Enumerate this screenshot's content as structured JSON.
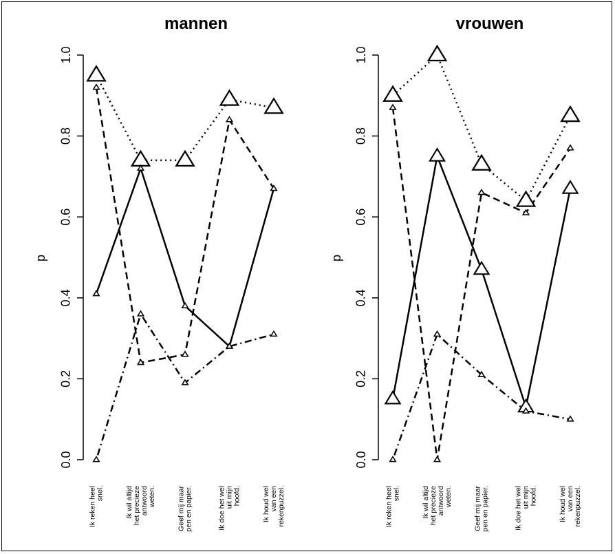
{
  "chart_data": [
    {
      "type": "line",
      "title": "mannen",
      "ylabel": "p",
      "xlabel": "",
      "ylim": [
        0,
        1
      ],
      "yticks": [
        "0.0",
        "0.2",
        "0.4",
        "0.6",
        "0.8",
        "1.0"
      ],
      "categories": [
        [
          "Ik reken heel",
          "snel."
        ],
        [
          "Ik wil altijd",
          "het precieze",
          "antwoord",
          "weten."
        ],
        [
          "Geef mij maar",
          "pen en papier."
        ],
        [
          "Ik doe het wel",
          "uit mijn",
          "hoofd."
        ],
        [
          "Ik houd wel",
          "van een",
          "rekenpuzzel."
        ]
      ],
      "series": [
        {
          "style": "dotted",
          "values": [
            0.95,
            0.74,
            0.74,
            0.89,
            0.87
          ],
          "sizes": [
            3,
            3,
            3,
            3,
            3
          ]
        },
        {
          "style": "dashed",
          "values": [
            0.92,
            0.24,
            0.26,
            0.84,
            0.67
          ],
          "sizes": [
            1,
            1,
            1,
            1,
            1
          ]
        },
        {
          "style": "solid",
          "values": [
            0.41,
            0.72,
            0.38,
            0.28,
            0.67
          ],
          "sizes": [
            1,
            1,
            1,
            1,
            1
          ]
        },
        {
          "style": "dotdash",
          "values": [
            0.0,
            0.36,
            0.19,
            0.28,
            0.31
          ],
          "sizes": [
            1,
            1,
            1,
            1,
            1
          ]
        }
      ]
    },
    {
      "type": "line",
      "title": "vrouwen",
      "ylabel": "p",
      "xlabel": "",
      "ylim": [
        0,
        1
      ],
      "yticks": [
        "0.0",
        "0.2",
        "0.4",
        "0.6",
        "0.8",
        "1.0"
      ],
      "categories": [
        [
          "Ik reken heel",
          "snel."
        ],
        [
          "Ik wil altijd",
          "het precieze",
          "antwoord",
          "weten."
        ],
        [
          "Geef mij maar",
          "pen en papier."
        ],
        [
          "Ik doe het wel",
          "uit mijn",
          "hoofd."
        ],
        [
          "Ik houd wel",
          "van een",
          "rekenpuzzel."
        ]
      ],
      "series": [
        {
          "style": "dotted",
          "values": [
            0.9,
            1.0,
            0.73,
            0.64,
            0.85
          ],
          "sizes": [
            3,
            3,
            3,
            3,
            3
          ]
        },
        {
          "style": "dashed",
          "values": [
            0.87,
            0.0,
            0.66,
            0.61,
            0.77
          ],
          "sizes": [
            1,
            1,
            1,
            1,
            1
          ]
        },
        {
          "style": "solid",
          "values": [
            0.15,
            0.75,
            0.47,
            0.13,
            0.67
          ],
          "sizes": [
            2.5,
            2.5,
            2.5,
            2.5,
            2.5
          ]
        },
        {
          "style": "dotdash",
          "values": [
            0.0,
            0.31,
            0.21,
            0.12,
            0.1
          ],
          "sizes": [
            1,
            1,
            1,
            1,
            1
          ]
        }
      ]
    }
  ]
}
